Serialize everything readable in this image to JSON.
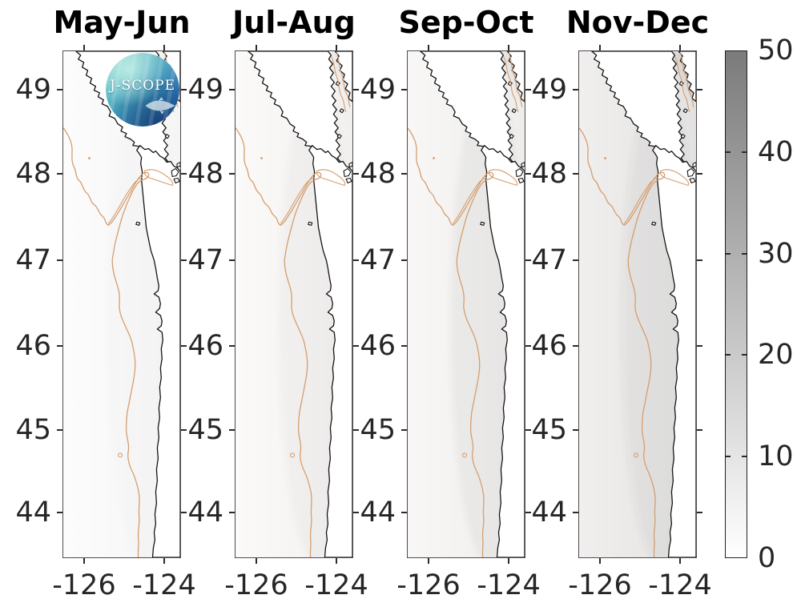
{
  "figure": {
    "description": "Four-panel coastal map figure with shared grayscale colorbar and J-SCOPE logo"
  },
  "panels": [
    {
      "title": "May-Jun",
      "slug": "may-jun",
      "ocean_left": "#fdfcfc",
      "ocean_right": "#f6f5f5",
      "channel_fill": "#f2f0ef",
      "nearshore_alpha": 0.012,
      "has_logo": true
    },
    {
      "title": "Jul-Aug",
      "slug": "jul-aug",
      "ocean_left": "#fbfaf9",
      "ocean_right": "#f1f0ef",
      "channel_fill": "#ebe9e8",
      "nearshore_alpha": 0.022,
      "has_logo": false
    },
    {
      "title": "Sep-Oct",
      "slug": "sep-oct",
      "ocean_left": "#f8f7f6",
      "ocean_right": "#eeedec",
      "channel_fill": "#e5e3e2",
      "nearshore_alpha": 0.038,
      "has_logo": false
    },
    {
      "title": "Nov-Dec",
      "slug": "nov-dec",
      "ocean_left": "#f0efee",
      "ocean_right": "#e3e2e1",
      "channel_fill": "#d6d4d3",
      "nearshore_alpha": 0.055,
      "has_logo": false
    }
  ],
  "axes": {
    "lat_ticks": [
      "49",
      "48",
      "47",
      "46",
      "45",
      "44"
    ],
    "lon_ticks": [
      "-126",
      "-124"
    ]
  },
  "colorbar": {
    "tick_labels": [
      "50",
      "40",
      "30",
      "20",
      "10",
      "0"
    ],
    "top_color": "#7b7b7b",
    "bottom_color": "#ffffff"
  },
  "logo": {
    "text": "J-SCOPE"
  },
  "colors": {
    "coastline": "#121212",
    "contour": "#d49d6d",
    "axis_text": "#262626",
    "panel_border": "#4d4d4d",
    "land": "#ffffff"
  },
  "chart_data": {
    "type": "heatmap",
    "subtype": "geographic small-multiple maps (MATLAB-style)",
    "panels": [
      "May-Jun",
      "Jul-Aug",
      "Sep-Oct",
      "Nov-Dec"
    ],
    "region": "Pacific Northwest coast: Vancouver Island, Strait of Juan de Fuca, Washington and Oregon shelf",
    "x": {
      "label": "",
      "tick_values": [
        -126,
        -124
      ],
      "range": [
        -126.55,
        -123.6
      ],
      "units": "degrees longitude"
    },
    "y": {
      "label": "",
      "tick_values": [
        49,
        48,
        47,
        46,
        45,
        44
      ],
      "range": [
        43.45,
        49.47
      ],
      "units": "degrees latitude"
    },
    "colorbar": {
      "range": [
        0,
        50
      ],
      "ticks": [
        0,
        10,
        20,
        30,
        40,
        50
      ],
      "colormap": "white (0) to medium gray (50)",
      "label": ""
    },
    "estimated_mean_shelf_value_per_panel": {
      "May-Jun": 2,
      "Jul-Aug": 3,
      "Sep-Oct": 5,
      "Nov-Dec": 9
    },
    "notes": "Shading darkens seasonally from May-Jun (near 0) to Nov-Dec (~8-12), highest in Strait of Georgia area of Nov-Dec panel",
    "overlays": [
      "black coastline outline",
      "tan shelf-break contour line with canyon hook near Strait of Juan de Fuca",
      "small closed tan contour loops offshore",
      "J-SCOPE circular logo on first panel"
    ],
    "legend_position": "right colorbar",
    "grid": false
  }
}
